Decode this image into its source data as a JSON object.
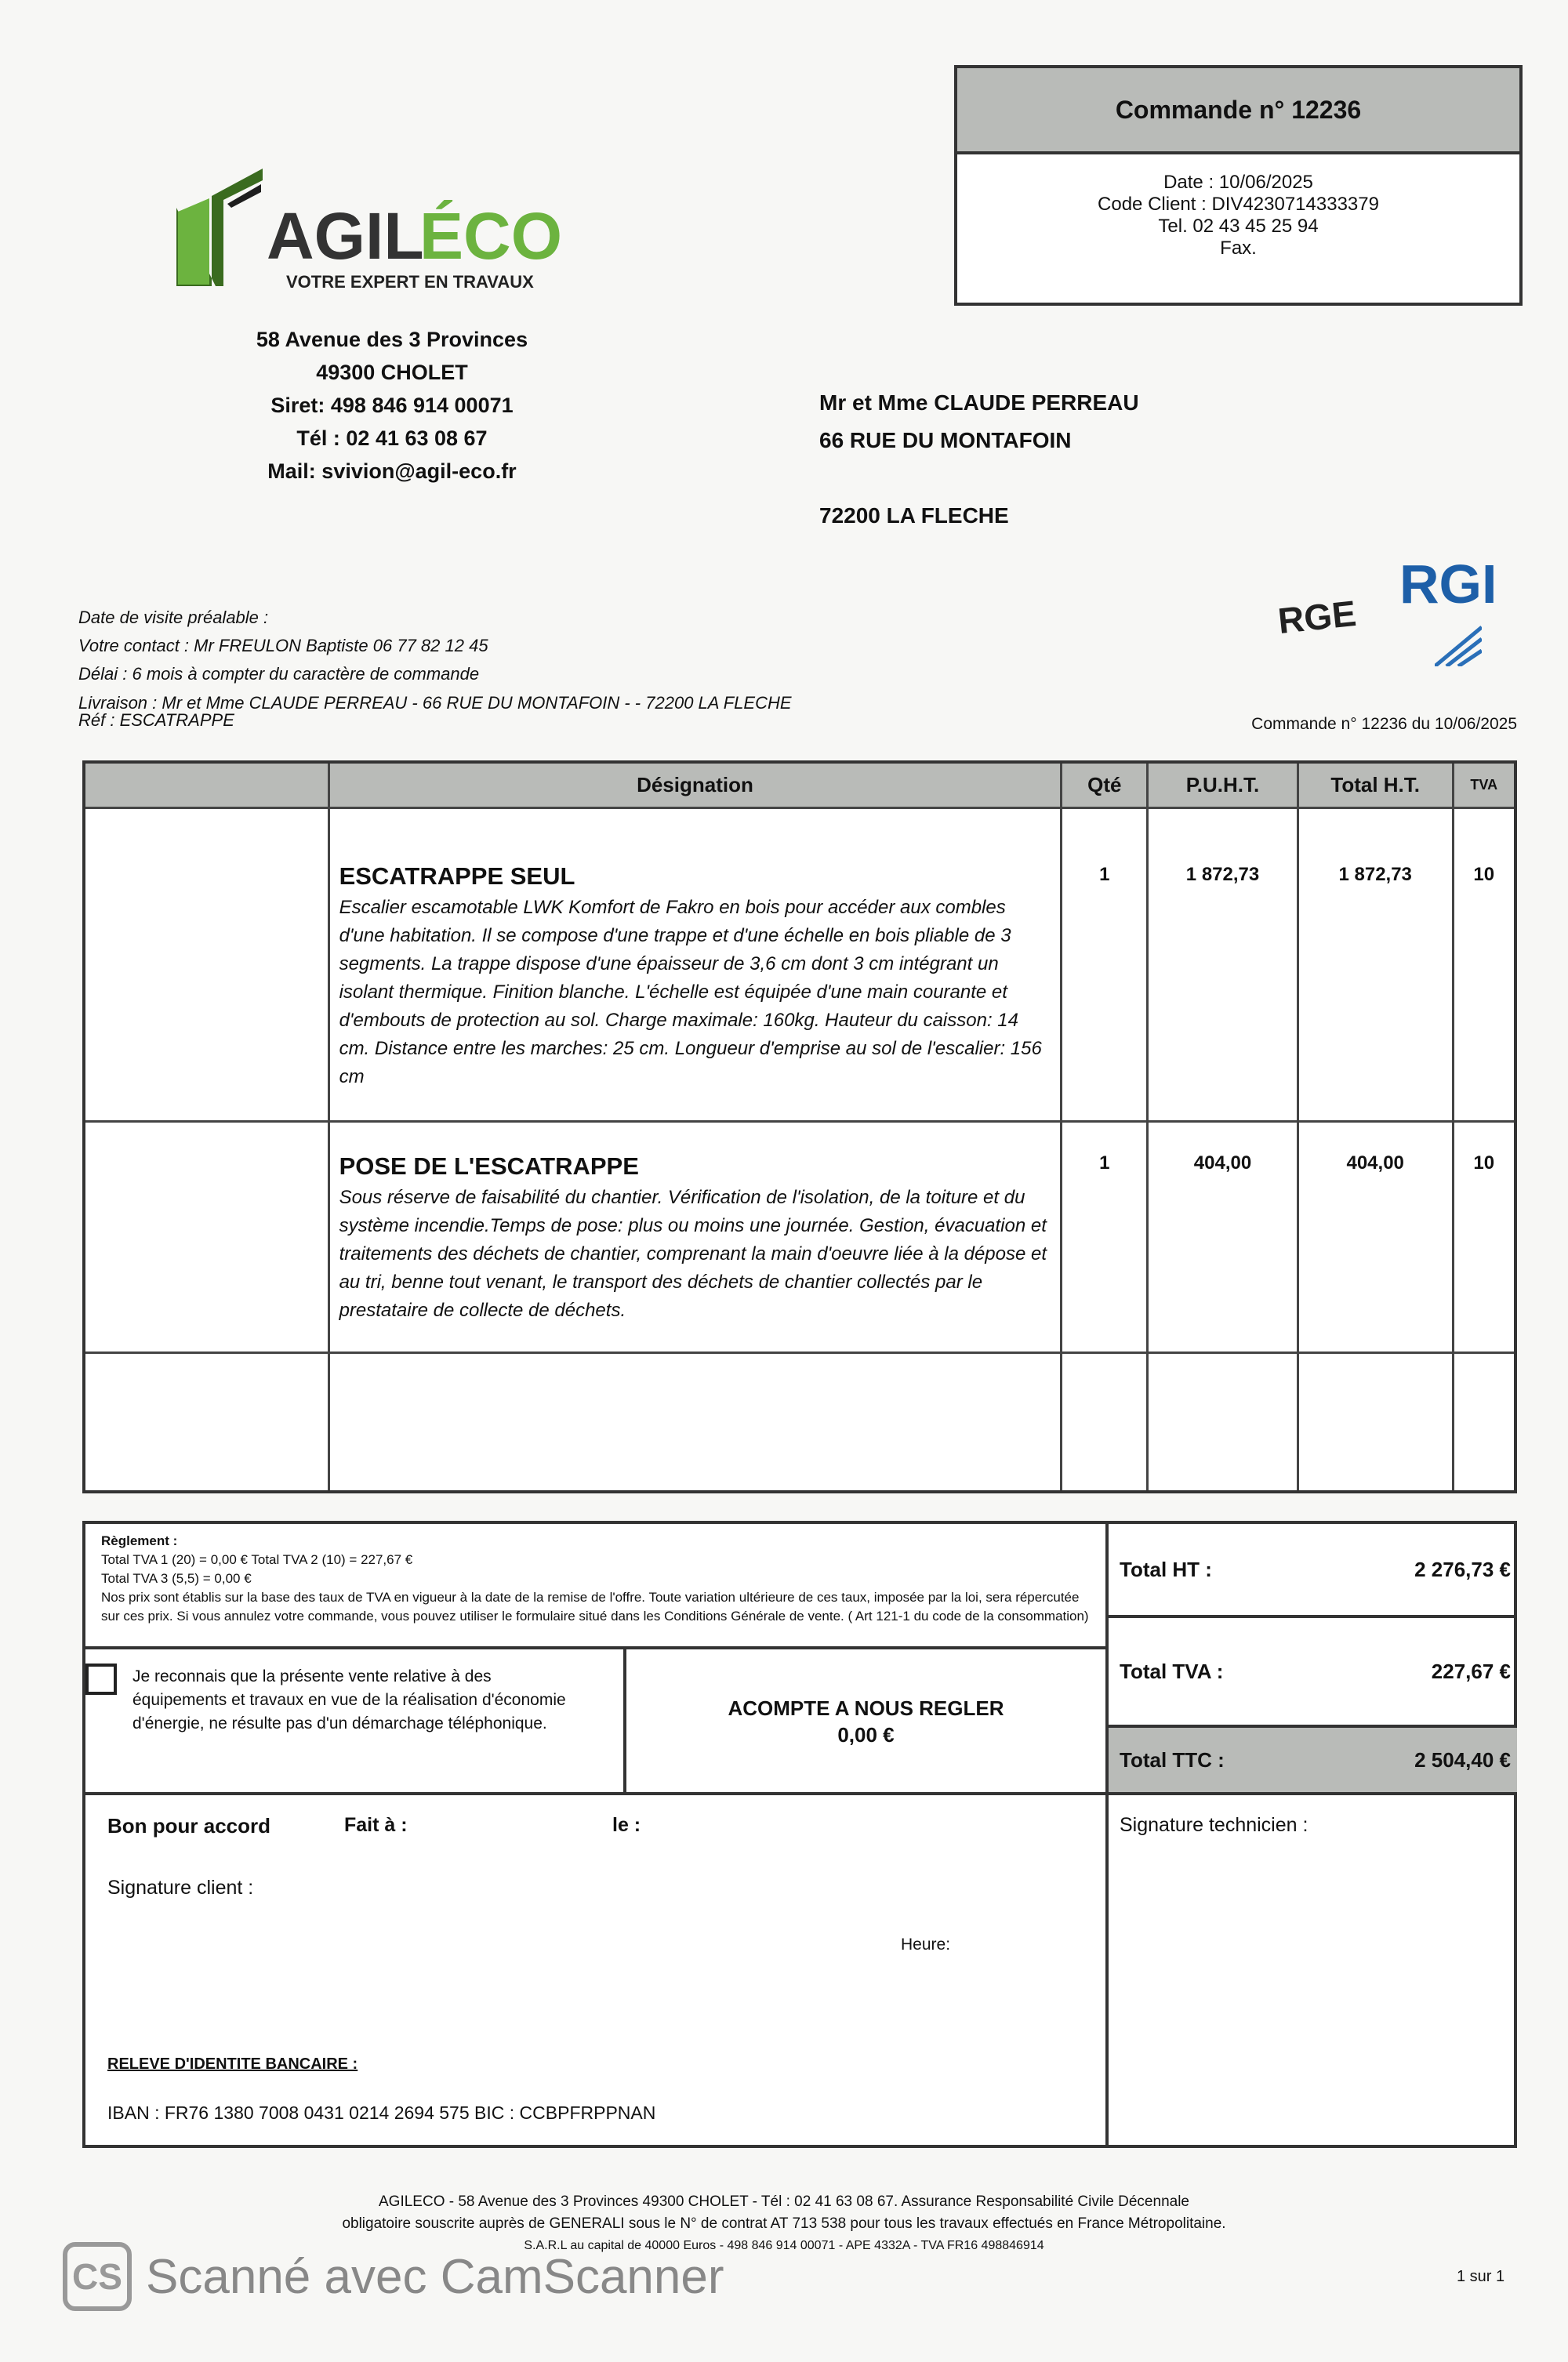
{
  "order": {
    "title": "Commande n° 12236",
    "date": "Date : 10/06/2025",
    "client_code": "Code Client : DIV4230714333379",
    "tel": "Tel. 02 43 45 25 94",
    "fax": "Fax."
  },
  "company": {
    "logo_text": "AGILÉCO",
    "tagline": "VOTRE EXPERT EN TRAVAUX",
    "brand_color": "#5aa02c",
    "address": "58 Avenue des 3 Provinces",
    "city": "49300 CHOLET",
    "siret": "Siret: 498 846 914 00071",
    "tel": "Tél : 02 41 63 08 67",
    "mail": "Mail: svivion@agil-eco.fr"
  },
  "client": {
    "name": "Mr et Mme CLAUDE PERREAU",
    "street": "66 RUE DU MONTAFOIN",
    "city": "72200 LA FLECHE"
  },
  "certifications": {
    "rge": "RGE",
    "rgi": "RGI"
  },
  "info": {
    "visit": "Date de visite préalable :",
    "contact": "Votre contact : Mr FREULON Baptiste 06 77 82 12 45",
    "delay": "Délai : 6 mois à compter du caractère de commande",
    "delivery": "Livraison : Mr et Mme CLAUDE PERREAU - 66 RUE DU MONTAFOIN - - 72200 LA FLECHE",
    "ref": "Réf : ESCATRAPPE"
  },
  "order_ref": "Commande n° 12236 du 10/06/2025",
  "table": {
    "headers": [
      "",
      "Désignation",
      "Qté",
      "P.U.H.T.",
      "Total H.T.",
      "TVA"
    ],
    "rows": [
      {
        "title": "ESCATRAPPE SEUL",
        "description": "Escalier escamotable LWK Komfort de Fakro en bois pour accéder aux combles d'une habitation. Il se compose d'une trappe et d'une échelle en bois pliable de 3 segments. La trappe dispose d'une épaisseur de 3,6 cm dont 3 cm intégrant un isolant thermique. Finition blanche. L'échelle est équipée d'une main courante et d'embouts de protection au sol. Charge maximale: 160kg. Hauteur du caisson: 14 cm. Distance entre les marches: 25 cm. Longueur d'emprise au sol de l'escalier: 156 cm",
        "qty": "1",
        "unit_price": "1 872,73",
        "total": "1 872,73",
        "vat": "10"
      },
      {
        "title": "POSE DE L'ESCATRAPPE",
        "description": "Sous réserve de faisabilité du chantier. Vérification de l'isolation, de la toiture et du système incendie.Temps de pose: plus ou moins une journée.  Gestion, évacuation et traitements des déchets de chantier, comprenant la main d'oeuvre liée à la dépose et au tri, benne tout venant, le transport des déchets de chantier collectés par le prestataire de collecte de déchets.",
        "qty": "1",
        "unit_price": "404,00",
        "total": "404,00",
        "vat": "10"
      }
    ]
  },
  "payment": {
    "label": "Règlement :",
    "vat1": "Total TVA 1 (20) = 0,00 €  Total TVA 2 (10) = 227,67 €",
    "vat3": "Total TVA 3 (5,5) = 0,00 €",
    "notice": "Nos prix sont établis sur la base des taux de TVA en vigueur à la date de la remise de l'offre. Toute variation ultérieure de ces taux, imposée par la loi, sera répercutée sur ces prix. Si vous annulez votre commande, vous pouvez utiliser le formulaire situé dans les Conditions Générale de vente. ( Art 121-1 du code de la consommation)"
  },
  "acknowledge": "Je reconnais que la présente vente relative à des équipements et travaux en vue de la réalisation d'économie d'énergie, ne résulte pas d'un démarchage téléphonique.",
  "deposit": {
    "label": "ACOMPTE A NOUS REGLER",
    "value": "0,00 €"
  },
  "totals": {
    "ht_label": "Total HT :",
    "ht": "2 276,73 €",
    "tva_label": "Total TVA :",
    "tva": "227,67 €",
    "ttc_label": "Total TTC :",
    "ttc": "2 504,40 €"
  },
  "signature": {
    "agreement": "Bon pour accord",
    "done_at": "Fait à :",
    "on": "le :",
    "client": "Signature client :",
    "hour": "Heure:",
    "technician": "Signature technicien :"
  },
  "bank": {
    "title": "RELEVE D'IDENTITE BANCAIRE :",
    "iban": "IBAN : FR76 1380 7008 0431 0214 2694 575   BIC : CCBPFRPPNAN"
  },
  "footer": {
    "line1": "AGILECO - 58 Avenue des 3 Provinces 49300 CHOLET -  Tél : 02 41 63 08 67. Assurance Responsabilité Civile Décennale",
    "line2": "obligatoire souscrite auprès de GENERALI sous le N° de contrat AT 713 538 pour tous les travaux effectués en France Métropolitaine.",
    "line3": "S.A.R.L au capital de 40000 Euros - 498 846 914 00071 - APE 4332A - TVA FR16 498846914",
    "page": "1 sur 1"
  },
  "watermark": {
    "icon": "CS",
    "text": "Scanné avec CamScanner"
  }
}
